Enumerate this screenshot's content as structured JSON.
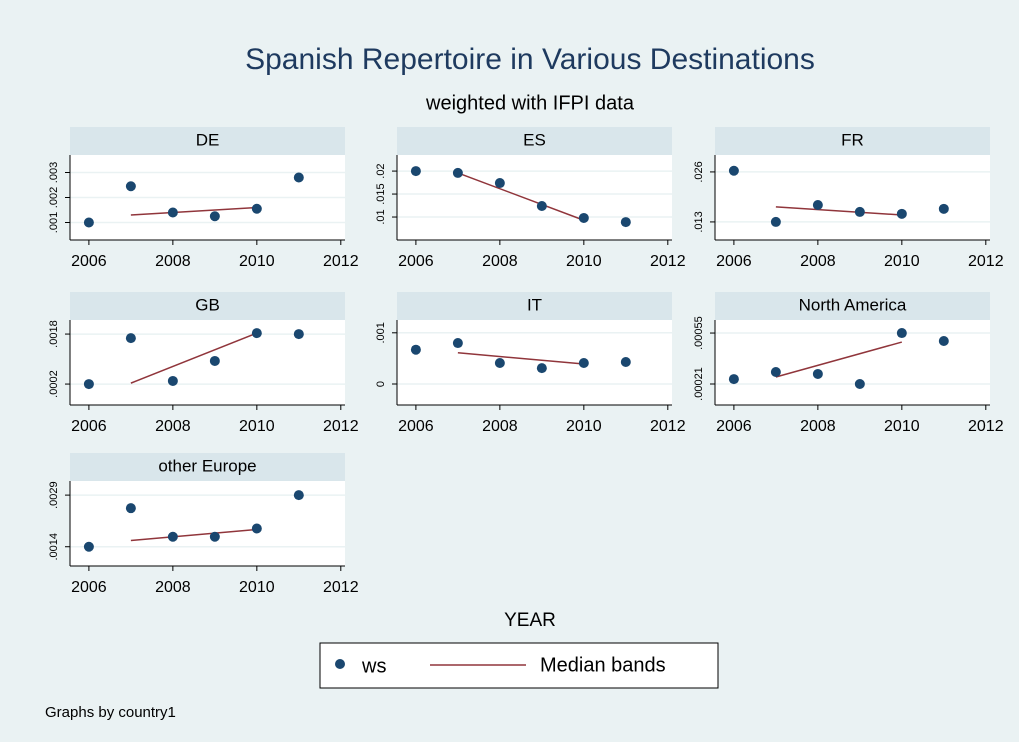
{
  "title": "Spanish Repertoire in Various Destinations",
  "subtitle": "weighted with IFPI data",
  "xlabel": "YEAR",
  "note": "Graphs by country1",
  "legend": [
    {
      "name": "ws",
      "color": "#1a476f"
    },
    {
      "name": "Median bands",
      "color": "#90353b"
    }
  ],
  "chart_data": [
    {
      "type": "scatter",
      "title": "DE",
      "x": [
        2006,
        2007,
        2008,
        2009,
        2010,
        2011
      ],
      "series": [
        {
          "values": [
            0.001,
            0.00245,
            0.0014,
            0.00125,
            0.00155,
            0.0028
          ]
        },
        {
          "values": [
            null,
            0.0013,
            null,
            null,
            0.0016,
            null
          ]
        }
      ],
      "xlim": [
        2005.55,
        2012.1
      ],
      "xticks": [
        2006,
        2008,
        2010,
        2012
      ],
      "ylim": [
        0.0003,
        0.0037
      ],
      "yticks": [
        {
          "value": 0.001,
          "label": ".001"
        },
        {
          "value": 0.002,
          "label": ".002"
        },
        {
          "value": 0.003,
          "label": ".003"
        }
      ]
    },
    {
      "type": "scatter",
      "title": "ES",
      "x": [
        2006,
        2007,
        2008,
        2009,
        2010,
        2011
      ],
      "series": [
        {
          "values": [
            0.02,
            0.0196,
            0.0174,
            0.0124,
            0.0098,
            0.0089
          ]
        },
        {
          "values": [
            null,
            0.0196,
            null,
            null,
            0.0093,
            null
          ]
        }
      ],
      "xlim": [
        2005.55,
        2012.1
      ],
      "xticks": [
        2006,
        2008,
        2010,
        2012
      ],
      "ylim": [
        0.005,
        0.0235
      ],
      "yticks": [
        {
          "value": 0.01,
          "label": ".01"
        },
        {
          "value": 0.015,
          "label": ".015"
        },
        {
          "value": 0.02,
          "label": ".02"
        }
      ]
    },
    {
      "type": "scatter",
      "title": "FR",
      "x": [
        2006,
        2007,
        2008,
        2009,
        2010,
        2011
      ],
      "series": [
        {
          "values": [
            0.0263,
            0.013,
            0.0174,
            0.0156,
            0.0151,
            0.0164
          ]
        },
        {
          "values": [
            null,
            0.0169,
            null,
            null,
            0.0148,
            null
          ]
        }
      ],
      "xlim": [
        2005.55,
        2012.1
      ],
      "xticks": [
        2006,
        2008,
        2010,
        2012
      ],
      "ylim": [
        0.0083,
        0.0304
      ],
      "yticks": [
        {
          "value": 0.013,
          "label": ".013"
        },
        {
          "value": 0.026,
          "label": ".026"
        }
      ]
    },
    {
      "type": "scatter",
      "title": "GB",
      "x": [
        2006,
        2007,
        2008,
        2009,
        2010,
        2011
      ],
      "series": [
        {
          "values": [
            0.0002,
            0.00167,
            0.0003,
            0.00094,
            0.00183,
            0.0018
          ]
        },
        {
          "values": [
            null,
            0.00023,
            null,
            null,
            0.00183,
            null
          ]
        }
      ],
      "xlim": [
        2005.55,
        2012.1
      ],
      "xticks": [
        2006,
        2008,
        2010,
        2012
      ],
      "ylim": [
        -0.00047,
        0.00225
      ],
      "yticks": [
        {
          "value": 0.0002,
          "label": ".0002"
        },
        {
          "value": 0.0018,
          "label": ".0018"
        }
      ]
    },
    {
      "type": "scatter",
      "title": "IT",
      "x": [
        2006,
        2007,
        2008,
        2009,
        2010,
        2011
      ],
      "series": [
        {
          "values": [
            0.00067,
            0.0008,
            0.00041,
            0.00031,
            0.00041,
            0.00043
          ]
        },
        {
          "values": [
            null,
            0.00061,
            null,
            null,
            0.00039,
            null
          ]
        }
      ],
      "xlim": [
        2005.55,
        2012.1
      ],
      "xticks": [
        2006,
        2008,
        2010,
        2012
      ],
      "ylim": [
        -0.00041,
        0.00125
      ],
      "yticks": [
        0,
        {
          "value": 0.001,
          "label": ".001"
        }
      ]
    },
    {
      "type": "scatter",
      "title": "North America",
      "x": [
        2006,
        2007,
        2008,
        2009,
        2010,
        2011
      ],
      "series": [
        {
          "values": [
            0.000243,
            0.00029,
            0.000277,
            0.00021,
            0.00055,
            0.000497
          ]
        },
        {
          "values": [
            null,
            0.000257,
            null,
            null,
            0.00049,
            null
          ]
        }
      ],
      "xlim": [
        2005.55,
        2012.1
      ],
      "xticks": [
        2006,
        2008,
        2010,
        2012
      ],
      "ylim": [
        7e-05,
        0.000637
      ],
      "yticks": [
        {
          "value": 0.00021,
          "label": ".00021"
        },
        {
          "value": 0.00055,
          "label": ".00055"
        }
      ]
    },
    {
      "type": "scatter",
      "title": "other Europe",
      "x": [
        2006,
        2007,
        2008,
        2009,
        2010,
        2011
      ],
      "series": [
        {
          "values": [
            0.0014,
            0.00252,
            0.00169,
            0.00169,
            0.00193,
            0.0029
          ]
        },
        {
          "values": [
            null,
            0.00158,
            null,
            null,
            0.0019,
            null
          ]
        }
      ],
      "xlim": [
        2005.55,
        2012.1
      ],
      "xticks": [
        2006,
        2008,
        2010,
        2012
      ],
      "ylim": [
        0.00084,
        0.00331
      ],
      "yticks": [
        {
          "value": 0.0014,
          "label": ".0014"
        },
        {
          "value": 0.0029,
          "label": ".0029"
        }
      ]
    }
  ]
}
